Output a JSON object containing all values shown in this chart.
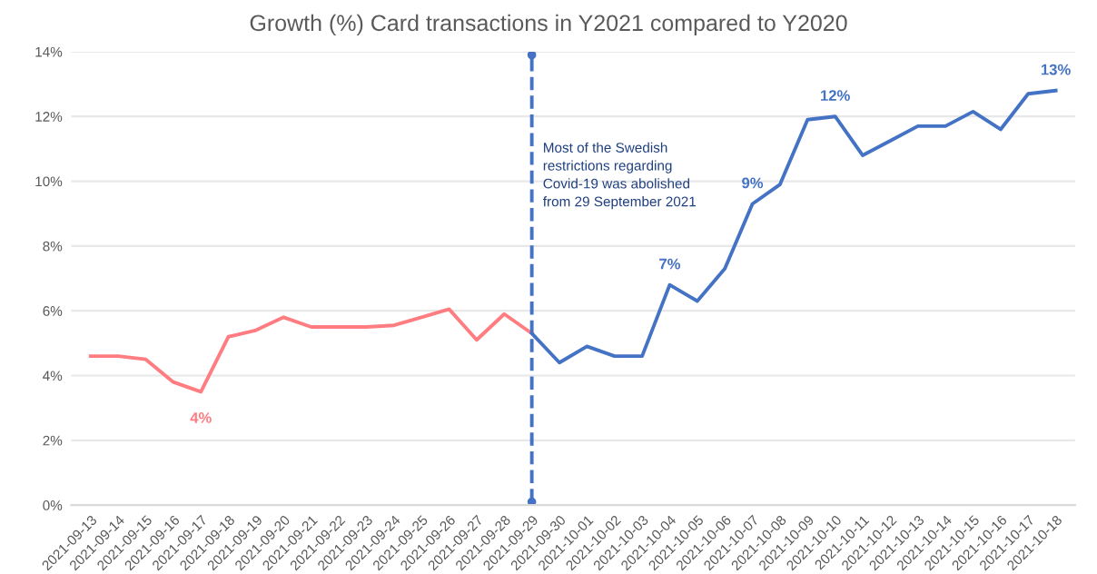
{
  "chart_data": {
    "type": "line",
    "title": "Growth (%) Card transactions in Y2021 compared to Y2020",
    "categories": [
      "2021-09-13",
      "2021-09-14",
      "2021-09-15",
      "2021-09-16",
      "2021-09-17",
      "2021-09-18",
      "2021-09-19",
      "2021-09-20",
      "2021-09-21",
      "2021-09-22",
      "2021-09-23",
      "2021-09-24",
      "2021-09-25",
      "2021-09-26",
      "2021-09-27",
      "2021-09-28",
      "2021-09-29",
      "2021-09-30",
      "2021-10-01",
      "2021-10-02",
      "2021-10-03",
      "2021-10-04",
      "2021-10-05",
      "2021-10-06",
      "2021-10-07",
      "2021-10-08",
      "2021-10-09",
      "2021-10-10",
      "2021-10-11",
      "2021-10-12",
      "2021-10-13",
      "2021-10-14",
      "2021-10-15",
      "2021-10-16",
      "2021-10-17",
      "2021-10-18"
    ],
    "series": [
      {
        "color": "#ff7c80",
        "values": [
          4.6,
          4.6,
          4.5,
          3.8,
          3.5,
          5.2,
          5.4,
          5.8,
          5.5,
          5.5,
          5.5,
          5.55,
          5.8,
          6.05,
          5.1,
          5.9,
          5.3,
          null,
          null,
          null,
          null,
          null,
          null,
          null,
          null,
          null,
          null,
          null,
          null,
          null,
          null,
          null,
          null,
          null,
          null,
          null
        ],
        "value_labels": [
          null,
          null,
          null,
          null,
          "4%",
          null,
          null,
          null,
          null,
          null,
          null,
          null,
          null,
          null,
          null,
          null,
          null,
          null,
          null,
          null,
          null,
          null,
          null,
          null,
          null,
          null,
          null,
          null,
          null,
          null,
          null,
          null,
          null,
          null,
          null,
          null
        ]
      },
      {
        "color": "#4472c4",
        "values": [
          null,
          null,
          null,
          null,
          null,
          null,
          null,
          null,
          null,
          null,
          null,
          null,
          null,
          null,
          null,
          null,
          5.3,
          4.4,
          4.9,
          4.6,
          4.6,
          6.8,
          6.3,
          7.3,
          9.3,
          9.9,
          11.9,
          12.0,
          10.8,
          11.25,
          11.7,
          11.7,
          12.15,
          11.6,
          12.7,
          12.8
        ],
        "value_labels": [
          null,
          null,
          null,
          null,
          null,
          null,
          null,
          null,
          null,
          null,
          null,
          null,
          null,
          null,
          null,
          null,
          null,
          null,
          null,
          null,
          null,
          "7%",
          null,
          null,
          "9%",
          null,
          null,
          "12%",
          null,
          null,
          null,
          null,
          null,
          null,
          null,
          "13%"
        ]
      }
    ],
    "ylim": [
      0,
      14
    ],
    "yticks": [
      {
        "value": 0,
        "label": "0%"
      },
      {
        "value": 2,
        "label": "2%"
      },
      {
        "value": 4,
        "label": "4%"
      },
      {
        "value": 6,
        "label": "6%"
      },
      {
        "value": 8,
        "label": "8%"
      },
      {
        "value": 10,
        "label": "10%"
      },
      {
        "value": 12,
        "label": "12%"
      },
      {
        "value": 14,
        "label": "14%"
      }
    ],
    "grid": "y",
    "marker": "none",
    "line_style": "solid",
    "ref_lines": [
      {
        "axis": "x",
        "value": "2021-09-29",
        "label": "Most of the Swedish\nrestrictions regarding\nCovid-19 was abolished\nfrom 29 September 2021",
        "color": "#4472c4",
        "line_style": "dashed"
      }
    ]
  }
}
